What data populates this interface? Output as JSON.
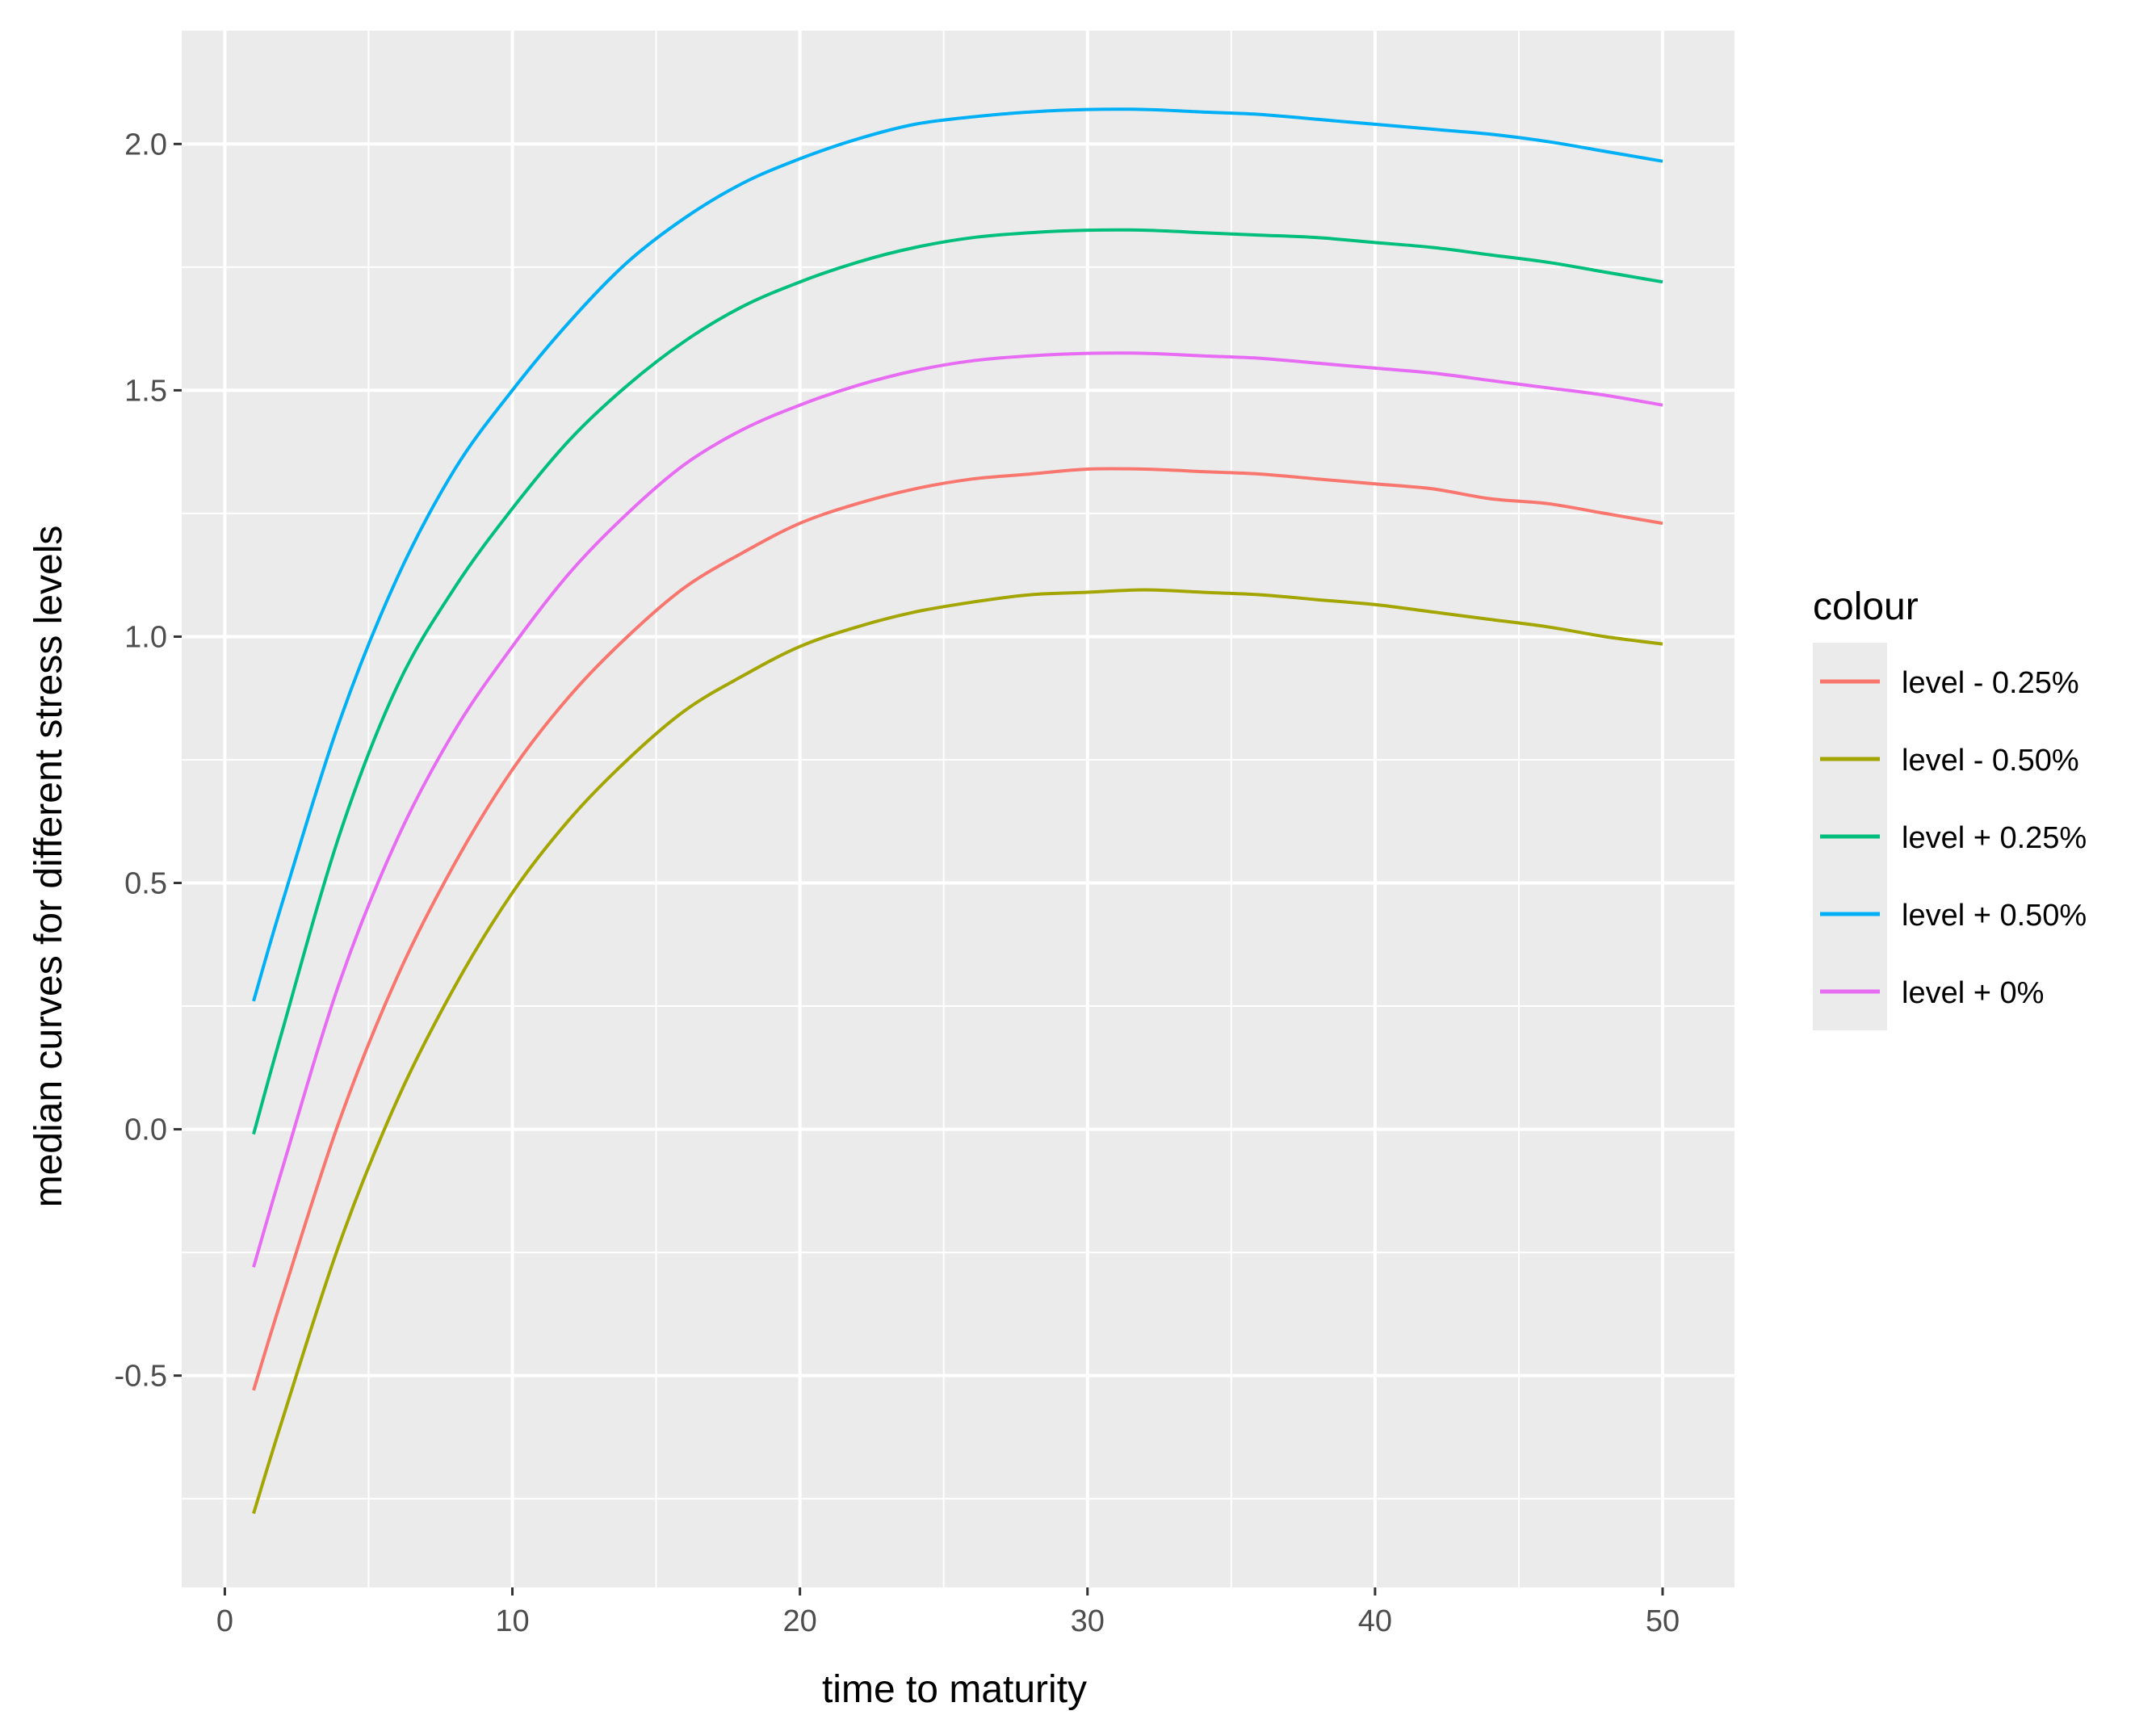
{
  "chart_data": {
    "type": "line",
    "title": "",
    "xlabel": "time to maturity",
    "ylabel": "median curves for different stress levels",
    "xlim": [
      -1.5,
      52.5
    ],
    "ylim": [
      -0.93,
      2.23
    ],
    "x_ticks": [
      0,
      10,
      20,
      30,
      40,
      50
    ],
    "x_tick_labels": [
      "0",
      "10",
      "20",
      "30",
      "40",
      "50"
    ],
    "y_ticks": [
      -0.5,
      0.0,
      0.5,
      1.0,
      1.5,
      2.0
    ],
    "y_tick_labels": [
      "-0.5",
      "0.0",
      "0.5",
      "1.0",
      "1.5",
      "2.0"
    ],
    "grid": true,
    "panel_background": "#EBEBEB",
    "legend": {
      "title": "colour",
      "position": "right"
    },
    "x": [
      1,
      2,
      4,
      6,
      8,
      10,
      12,
      14,
      16,
      18,
      20,
      22,
      24,
      26,
      28,
      30,
      32,
      34,
      36,
      38,
      40,
      42,
      44,
      46,
      48,
      50
    ],
    "series": [
      {
        "name": "level - 0.25%",
        "color": "#F8766D",
        "values": [
          -0.53,
          -0.34,
          0.02,
          0.31,
          0.54,
          0.73,
          0.88,
          1.0,
          1.1,
          1.17,
          1.23,
          1.27,
          1.3,
          1.32,
          1.33,
          1.34,
          1.34,
          1.335,
          1.33,
          1.32,
          1.31,
          1.3,
          1.28,
          1.27,
          1.25,
          1.23
        ]
      },
      {
        "name": "level - 0.50%",
        "color": "#A3A500",
        "values": [
          -0.78,
          -0.59,
          -0.23,
          0.06,
          0.29,
          0.48,
          0.63,
          0.75,
          0.85,
          0.92,
          0.98,
          1.02,
          1.05,
          1.07,
          1.085,
          1.09,
          1.095,
          1.09,
          1.085,
          1.075,
          1.065,
          1.05,
          1.035,
          1.02,
          1.0,
          0.985
        ]
      },
      {
        "name": "level + 0.25%",
        "color": "#00BF7D",
        "values": [
          -0.01,
          0.2,
          0.6,
          0.9,
          1.1,
          1.26,
          1.4,
          1.51,
          1.6,
          1.67,
          1.72,
          1.76,
          1.79,
          1.81,
          1.82,
          1.825,
          1.825,
          1.82,
          1.815,
          1.81,
          1.8,
          1.79,
          1.775,
          1.76,
          1.74,
          1.72
        ]
      },
      {
        "name": "level + 0.50%",
        "color": "#00B0F6",
        "values": [
          0.26,
          0.46,
          0.83,
          1.12,
          1.34,
          1.5,
          1.64,
          1.76,
          1.85,
          1.92,
          1.97,
          2.01,
          2.04,
          2.055,
          2.065,
          2.07,
          2.07,
          2.065,
          2.06,
          2.05,
          2.04,
          2.03,
          2.02,
          2.005,
          1.985,
          1.965
        ]
      },
      {
        "name": "level + 0%",
        "color": "#E76BF3",
        "values": [
          -0.28,
          -0.08,
          0.3,
          0.59,
          0.81,
          0.98,
          1.13,
          1.25,
          1.35,
          1.42,
          1.47,
          1.51,
          1.54,
          1.56,
          1.57,
          1.575,
          1.575,
          1.57,
          1.565,
          1.555,
          1.545,
          1.535,
          1.52,
          1.505,
          1.49,
          1.47
        ]
      }
    ]
  }
}
